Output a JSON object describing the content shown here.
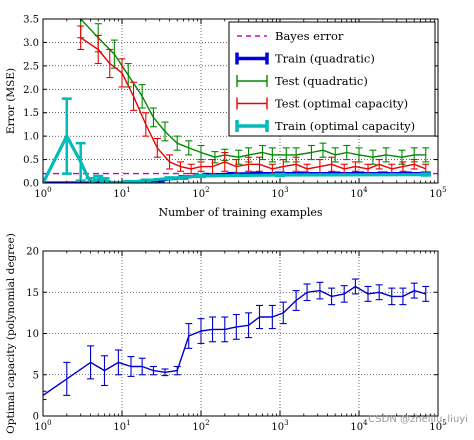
{
  "chart_data": [
    {
      "type": "line",
      "xscale": "log",
      "xlim": [
        1,
        100000
      ],
      "ylim": [
        0,
        3.5
      ],
      "xlabel": "Number of training examples",
      "ylabel": "Error (MSE)",
      "x_ticks": [
        "10^0",
        "10^1",
        "10^2",
        "10^3",
        "10^4",
        "10^5"
      ],
      "y_ticks": [
        "0.0",
        "0.5",
        "1.0",
        "1.5",
        "2.0",
        "2.5",
        "3.0",
        "3.5"
      ],
      "grid": true,
      "legend_position": "top-right",
      "bayes_error": 0.2,
      "series": [
        {
          "name": "Bayes error",
          "color": "#cc00cc",
          "style": "dashed",
          "x": [
            1,
            100000
          ],
          "y": [
            0.2,
            0.2
          ]
        },
        {
          "name": "Train (quadratic)",
          "color": "#0000dd",
          "style": "thick",
          "x": [
            1,
            2,
            4,
            8,
            15,
            30,
            60,
            120,
            250,
            500,
            1000,
            2000,
            5000,
            10000,
            20000,
            40000,
            70000
          ],
          "y": [
            0.0,
            0.0,
            0.0,
            0.0,
            0.02,
            0.06,
            0.12,
            0.17,
            0.19,
            0.2,
            0.2,
            0.2,
            0.2,
            0.2,
            0.2,
            0.2,
            0.2
          ],
          "err": [
            0,
            0,
            0,
            0,
            0.01,
            0.02,
            0.02,
            0.02,
            0.02,
            0.02,
            0.02,
            0.02,
            0.02,
            0.02,
            0.02,
            0.02,
            0.02
          ]
        },
        {
          "name": "Test (quadratic)",
          "color": "#008800",
          "style": "errorbar",
          "x": [
            3,
            5,
            8,
            12,
            18,
            25,
            35,
            50,
            70,
            100,
            150,
            200,
            300,
            400,
            600,
            800,
            1200,
            1600,
            2500,
            3500,
            5000,
            7000,
            10000,
            15000,
            22000,
            35000,
            50000,
            70000
          ],
          "y": [
            3.5,
            3.1,
            2.75,
            2.3,
            1.85,
            1.4,
            1.1,
            0.85,
            0.75,
            0.65,
            0.55,
            0.6,
            0.55,
            0.6,
            0.65,
            0.6,
            0.6,
            0.6,
            0.65,
            0.7,
            0.6,
            0.65,
            0.6,
            0.55,
            0.6,
            0.55,
            0.6,
            0.6
          ],
          "err": [
            0.4,
            0.3,
            0.3,
            0.25,
            0.25,
            0.2,
            0.2,
            0.15,
            0.15,
            0.15,
            0.12,
            0.12,
            0.15,
            0.15,
            0.15,
            0.15,
            0.15,
            0.15,
            0.15,
            0.15,
            0.15,
            0.15,
            0.15,
            0.15,
            0.15,
            0.15,
            0.15,
            0.15
          ]
        },
        {
          "name": "Test (optimal capacity)",
          "color": "#ee0000",
          "style": "errorbar",
          "x": [
            3,
            5,
            7,
            10,
            14,
            20,
            28,
            40,
            55,
            75,
            100,
            140,
            200,
            280,
            400,
            550,
            800,
            1100,
            1600,
            2200,
            3200,
            4500,
            6500,
            9000,
            13000,
            18000,
            26000,
            36000,
            50000,
            70000
          ],
          "y": [
            3.1,
            2.85,
            2.55,
            2.35,
            1.85,
            1.25,
            0.75,
            0.45,
            0.35,
            0.3,
            0.35,
            0.35,
            0.45,
            0.35,
            0.4,
            0.4,
            0.3,
            0.35,
            0.4,
            0.3,
            0.35,
            0.4,
            0.3,
            0.35,
            0.3,
            0.4,
            0.3,
            0.35,
            0.4,
            0.3
          ],
          "err": [
            0.25,
            0.3,
            0.3,
            0.3,
            0.3,
            0.25,
            0.2,
            0.15,
            0.1,
            0.1,
            0.1,
            0.15,
            0.2,
            0.15,
            0.15,
            0.15,
            0.1,
            0.15,
            0.15,
            0.1,
            0.15,
            0.15,
            0.1,
            0.1,
            0.1,
            0.1,
            0.1,
            0.1,
            0.1,
            0.1
          ]
        },
        {
          "name": "Train (optimal capacity)",
          "color": "#00bbbb",
          "style": "thick",
          "x": [
            1,
            2,
            3,
            4,
            5,
            6,
            8,
            12,
            20,
            40,
            100,
            1000,
            70000
          ],
          "y": [
            0.0,
            1.0,
            0.45,
            0.0,
            0.1,
            0.05,
            0.0,
            0.02,
            0.05,
            0.1,
            0.15,
            0.17,
            0.18
          ],
          "err": [
            0,
            0.8,
            0.4,
            0.1,
            0.05,
            0.05,
            0.02,
            0.02,
            0.02,
            0.02,
            0.02,
            0.02,
            0.02
          ]
        }
      ]
    },
    {
      "type": "line",
      "xscale": "log",
      "xlim": [
        1,
        100000
      ],
      "ylim": [
        0,
        20
      ],
      "xlabel": "Number of training examples",
      "ylabel": "Optimal capacity (polynomial degree)",
      "x_ticks": [
        "10^0",
        "10^1",
        "10^2",
        "10^3",
        "10^4",
        "10^5"
      ],
      "y_ticks": [
        "0",
        "5",
        "10",
        "15",
        "20"
      ],
      "grid": true,
      "series": [
        {
          "name": "Optimal capacity",
          "color": "#0000cc",
          "style": "errorbar",
          "x": [
            1,
            2,
            4,
            6,
            9,
            13,
            18,
            25,
            35,
            50,
            70,
            100,
            140,
            200,
            280,
            400,
            550,
            800,
            1100,
            1600,
            2200,
            3200,
            4500,
            6500,
            9000,
            13000,
            18000,
            26000,
            36000,
            50000,
            70000
          ],
          "y": [
            2.5,
            4.5,
            6.5,
            5.5,
            6.5,
            6.0,
            6.0,
            5.5,
            5.3,
            5.5,
            9.7,
            10.3,
            10.5,
            10.5,
            10.8,
            11.0,
            12.0,
            12.0,
            12.5,
            14.0,
            15.0,
            15.2,
            14.5,
            14.8,
            15.7,
            14.8,
            15.0,
            14.5,
            14.5,
            15.2,
            14.8
          ],
          "err": [
            0.5,
            2.0,
            2.0,
            1.8,
            1.5,
            1.2,
            1.0,
            0.5,
            0.4,
            0.5,
            1.5,
            1.5,
            1.5,
            1.5,
            1.5,
            1.5,
            1.4,
            1.4,
            1.3,
            1.2,
            1.0,
            1.0,
            1.0,
            1.0,
            0.9,
            0.9,
            0.9,
            1.0,
            1.0,
            0.9,
            0.9
          ]
        }
      ]
    }
  ],
  "watermark": "CSDN @zhelliu_liuyi"
}
